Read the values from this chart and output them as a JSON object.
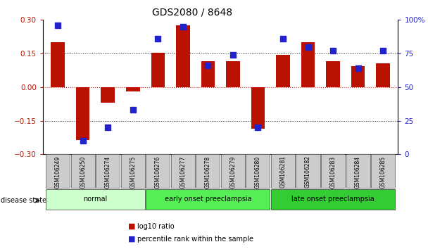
{
  "title": "GDS2080 / 8648",
  "samples": [
    "GSM106249",
    "GSM106250",
    "GSM106274",
    "GSM106275",
    "GSM106276",
    "GSM106277",
    "GSM106278",
    "GSM106279",
    "GSM106280",
    "GSM106281",
    "GSM106282",
    "GSM106283",
    "GSM106284",
    "GSM106285"
  ],
  "log10_ratio": [
    0.2,
    -0.235,
    -0.07,
    -0.02,
    0.155,
    0.275,
    0.115,
    0.115,
    -0.185,
    0.145,
    0.2,
    0.115,
    0.095,
    0.105
  ],
  "percentile_rank": [
    96,
    10,
    20,
    33,
    86,
    95,
    66,
    74,
    20,
    86,
    80,
    77,
    64,
    77
  ],
  "ylim_left": [
    -0.3,
    0.3
  ],
  "ylim_right": [
    0,
    100
  ],
  "yticks_left": [
    -0.3,
    -0.15,
    0,
    0.15,
    0.3
  ],
  "yticks_right": [
    0,
    25,
    50,
    75,
    100
  ],
  "ytick_labels_right": [
    "0",
    "25",
    "50",
    "75",
    "100%"
  ],
  "bar_color": "#bb1100",
  "dot_color": "#2222cc",
  "groups": [
    {
      "label": "normal",
      "start": 0,
      "end": 4,
      "color": "#ccffcc"
    },
    {
      "label": "early onset preeclampsia",
      "start": 4,
      "end": 9,
      "color": "#55ee55"
    },
    {
      "label": "late onset preeclampsia",
      "start": 9,
      "end": 14,
      "color": "#33cc33"
    }
  ],
  "legend_ratio_label": "log10 ratio",
  "legend_pct_label": "percentile rank within the sample",
  "disease_state_label": "disease state",
  "hline_color": "#dd2222",
  "dotted_color": "#222222",
  "tick_label_bg": "#cccccc",
  "figsize": [
    6.08,
    3.54
  ],
  "dpi": 100
}
